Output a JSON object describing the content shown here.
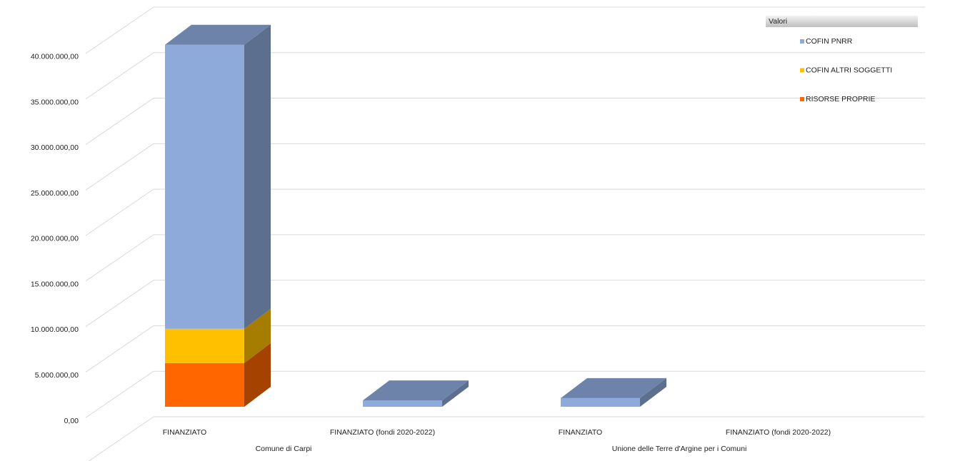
{
  "chart_data": {
    "type": "bar3d-stacked",
    "categories": [
      "FINANZIATO",
      "FINANZIATO (fondi 2020-2022)",
      "FINANZIATO",
      "FINANZIATO (fondi 2020-2022)"
    ],
    "groups": [
      "Comune di Carpi",
      "Unione delle Terre d'Argine per i Comuni"
    ],
    "legend_title": "Valori",
    "series": [
      {
        "name": "RISORSE PROPRIE",
        "color": "#ff6600",
        "values": [
          4800000,
          0,
          0,
          null
        ]
      },
      {
        "name": "COFIN ALTRI SOGGETTI",
        "color": "#ffc000",
        "values": [
          3770000,
          0,
          0,
          null
        ]
      },
      {
        "name": "COFIN PNRR",
        "color": "#8eaadb",
        "values": [
          31200000,
          700000,
          950000,
          null
        ]
      }
    ],
    "ylim": [
      0,
      45000000
    ],
    "yticks": [
      {
        "value": 0,
        "label": "0,00"
      },
      {
        "value": 5000000,
        "label": "5.000.000,00"
      },
      {
        "value": 10000000,
        "label": "10.000.000,00"
      },
      {
        "value": 15000000,
        "label": "15.000.000,00"
      },
      {
        "value": 20000000,
        "label": "20.000.000,00"
      },
      {
        "value": 25000000,
        "label": "25.000.000,00"
      },
      {
        "value": 30000000,
        "label": "30.000.000,00"
      },
      {
        "value": 35000000,
        "label": "35.000.000,00"
      },
      {
        "value": 40000000,
        "label": "40.000.000,00"
      }
    ],
    "grid": true,
    "legend": "top-right"
  }
}
